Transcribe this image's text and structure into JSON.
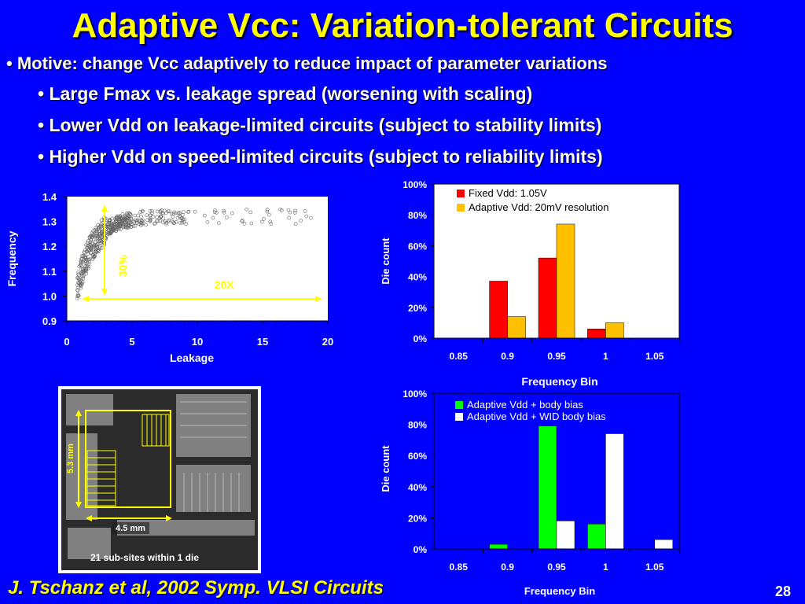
{
  "slide": {
    "title": "Adaptive Vcc: Variation-tolerant Circuits",
    "bullets": [
      "• Motive: change Vcc adaptively to reduce impact of parameter variations",
      "• Large Fmax vs. leakage spread (worsening with scaling)",
      "• Lower Vdd on leakage-limited circuits (subject to stability limits)",
      "• Higher Vdd on speed-limited circuits (subject to reliability limits)"
    ],
    "footer": "J. Tschanz et al, 2002 Symp. VLSI Circuits",
    "page_number": "28"
  },
  "die_photo": {
    "height_label": "5.3 mm",
    "width_label": "4.5 mm",
    "caption": "21 sub-sites within 1 die"
  },
  "chart_data": [
    {
      "type": "scatter",
      "xlabel": "Leakage",
      "ylabel": "Frequency",
      "xlim": [
        0,
        20
      ],
      "ylim": [
        0.9,
        1.4
      ],
      "xticks": [
        "0",
        "5",
        "10",
        "15",
        "20"
      ],
      "yticks": [
        "0.9",
        "1.0",
        "1.1",
        "1.2",
        "1.3",
        "1.4"
      ],
      "annotations": [
        "30%",
        "20X"
      ],
      "marker": "hollow circle",
      "point_color": "#ffffff"
    },
    {
      "type": "bar",
      "categories": [
        "0.85",
        "0.9",
        "0.95",
        "1",
        "1.05"
      ],
      "series": [
        {
          "name": "Fixed Vdd: 1.05V",
          "color": "#ff0000",
          "values": [
            0,
            37,
            52,
            6,
            0
          ]
        },
        {
          "name": "Adaptive Vdd: 20mV resolution",
          "color": "#ffc000",
          "values": [
            0,
            14,
            74,
            10,
            0
          ]
        }
      ],
      "xlabel": "Frequency Bin",
      "ylabel": "Die count",
      "ylim": [
        0,
        100
      ],
      "yticks": [
        "0%",
        "20%",
        "40%",
        "60%",
        "80%",
        "100%"
      ],
      "legend": "top-left inside plot"
    },
    {
      "type": "bar",
      "categories": [
        "0.85",
        "0.9",
        "0.95",
        "1",
        "1.05"
      ],
      "series": [
        {
          "name": "Adaptive Vdd + body bias",
          "color": "#00ff00",
          "values": [
            0,
            3,
            79,
            16,
            0
          ]
        },
        {
          "name": "Adaptive Vdd + WID body bias",
          "color": "#ffffff",
          "values": [
            0,
            0,
            18,
            74,
            6
          ]
        }
      ],
      "xlabel": "Frequency Bin",
      "ylabel": "Die count",
      "ylim": [
        0,
        100
      ],
      "yticks": [
        "0%",
        "20%",
        "40%",
        "60%",
        "80%",
        "100%"
      ],
      "legend": "top-left inside plot"
    }
  ]
}
